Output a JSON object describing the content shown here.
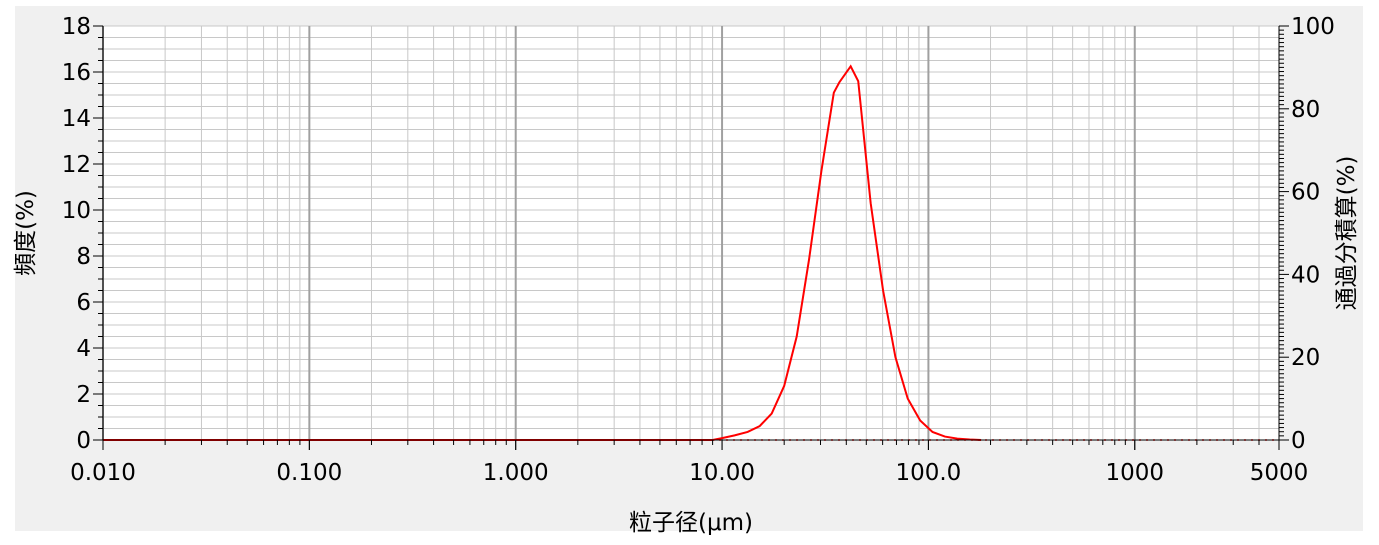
{
  "chart_data": {
    "type": "line",
    "xlabel": "粒子径(μm)",
    "ylabel": "頻度(%)",
    "y2label": "通過分積算(%)",
    "xscale": "log",
    "xlim": [
      0.01,
      5000
    ],
    "ylim": [
      0,
      18
    ],
    "y2lim": [
      0,
      100
    ],
    "x_ticks": [
      "0.010",
      "0.100",
      "1.000",
      "10.00",
      "100.0",
      "1000",
      "5000"
    ],
    "x_tick_values": [
      0.01,
      0.1,
      1,
      10,
      100,
      1000,
      5000
    ],
    "y_ticks": [
      "0",
      "2",
      "4",
      "6",
      "8",
      "10",
      "12",
      "14",
      "16",
      "18"
    ],
    "y_tick_values": [
      0,
      2,
      4,
      6,
      8,
      10,
      12,
      14,
      16,
      18
    ],
    "y2_ticks": [
      "0",
      "20",
      "40",
      "60",
      "80",
      "100"
    ],
    "y2_tick_values": [
      0,
      20,
      40,
      60,
      80,
      100
    ],
    "grid": true,
    "colors": {
      "frequency": "#ff0000",
      "cumulative": "#ff0000",
      "plot_background": "#ffffff",
      "outer_background": "#f0f0f0",
      "grid_major": "#a0a0a0",
      "grid_minor": "#c8c8c8"
    },
    "series": [
      {
        "style": "solid",
        "x": [
          0.01,
          9.0,
          10.0,
          11.5,
          13.3,
          15.2,
          17.4,
          20.0,
          23.0,
          26.4,
          30.3,
          34.8,
          37.0,
          42.0,
          45.7,
          52.5,
          60.3,
          69.2,
          79.4,
          91.2,
          104.7,
          120.2,
          138.0,
          158.5,
          180.0
        ],
        "values": [
          0,
          0,
          0.08,
          0.2,
          0.35,
          0.6,
          1.15,
          2.35,
          4.5,
          7.85,
          11.7,
          15.1,
          15.55,
          16.25,
          15.6,
          10.3,
          6.5,
          3.6,
          1.8,
          0.85,
          0.35,
          0.15,
          0.06,
          0.02,
          0
        ]
      },
      {
        "style": "dotted",
        "x": [
          0.01,
          5000
        ],
        "values": [
          0,
          0
        ]
      }
    ]
  }
}
